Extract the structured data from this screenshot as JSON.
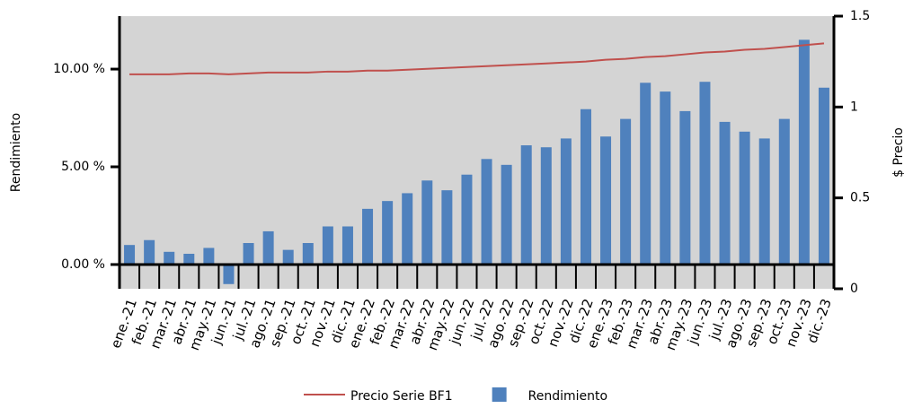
{
  "chart_data": {
    "type": "bar",
    "y_label": "Rendimiento",
    "y2_label": "$ Precio",
    "categories": [
      "ene.-21",
      "feb.-21",
      "mar.-21",
      "abr.-21",
      "may.-21",
      "jun.-21",
      "jul.-21",
      "ago.-21",
      "sep.-21",
      "oct.-21",
      "nov.-21",
      "dic.-21",
      "ene.-22",
      "feb.-22",
      "mar.-22",
      "abr.-22",
      "may.-22",
      "jun.-22",
      "jul.-22",
      "ago.-22",
      "sep.-22",
      "oct.-22",
      "nov.-22",
      "dic.-22",
      "ene.-23",
      "feb.-23",
      "mar.-23",
      "abr.-23",
      "may.-23",
      "jun.-23",
      "jul.-23",
      "ago.-23",
      "sep.-23",
      "oct.-23",
      "nov.-23",
      "dic.-23"
    ],
    "series": [
      {
        "name": "Precio Serie BF1",
        "type": "line",
        "axis": "y2",
        "color": "#c0504d",
        "values": [
          1.18,
          1.18,
          1.18,
          1.185,
          1.185,
          1.18,
          1.185,
          1.19,
          1.19,
          1.19,
          1.195,
          1.195,
          1.2,
          1.2,
          1.205,
          1.21,
          1.215,
          1.22,
          1.225,
          1.23,
          1.235,
          1.24,
          1.245,
          1.25,
          1.26,
          1.265,
          1.275,
          1.28,
          1.29,
          1.3,
          1.305,
          1.315,
          1.32,
          1.33,
          1.34,
          1.35
        ]
      },
      {
        "name": "Rendimiento",
        "type": "bar",
        "color": "#4f81bd",
        "values": [
          1.0,
          1.25,
          0.65,
          0.55,
          0.85,
          -1.0,
          1.1,
          1.7,
          0.75,
          1.1,
          1.95,
          1.95,
          2.85,
          3.25,
          3.65,
          4.3,
          3.8,
          4.6,
          5.4,
          5.1,
          6.1,
          6.0,
          6.45,
          7.95,
          6.55,
          7.45,
          9.3,
          8.85,
          7.85,
          9.35,
          7.3,
          6.8,
          6.45,
          7.45,
          11.5,
          9.05
        ]
      }
    ],
    "ylim": [
      -1.24,
      12.71
    ],
    "yticks": [
      {
        "value": 0,
        "label": "0.00 %"
      },
      {
        "value": 5,
        "label": "5.00 %"
      },
      {
        "value": 10,
        "label": "10.00 %"
      }
    ],
    "y2lim": [
      0,
      1.5
    ],
    "y2ticks": [
      0,
      0.5,
      1,
      1.5
    ],
    "plot_background": "#d4d4d4"
  }
}
